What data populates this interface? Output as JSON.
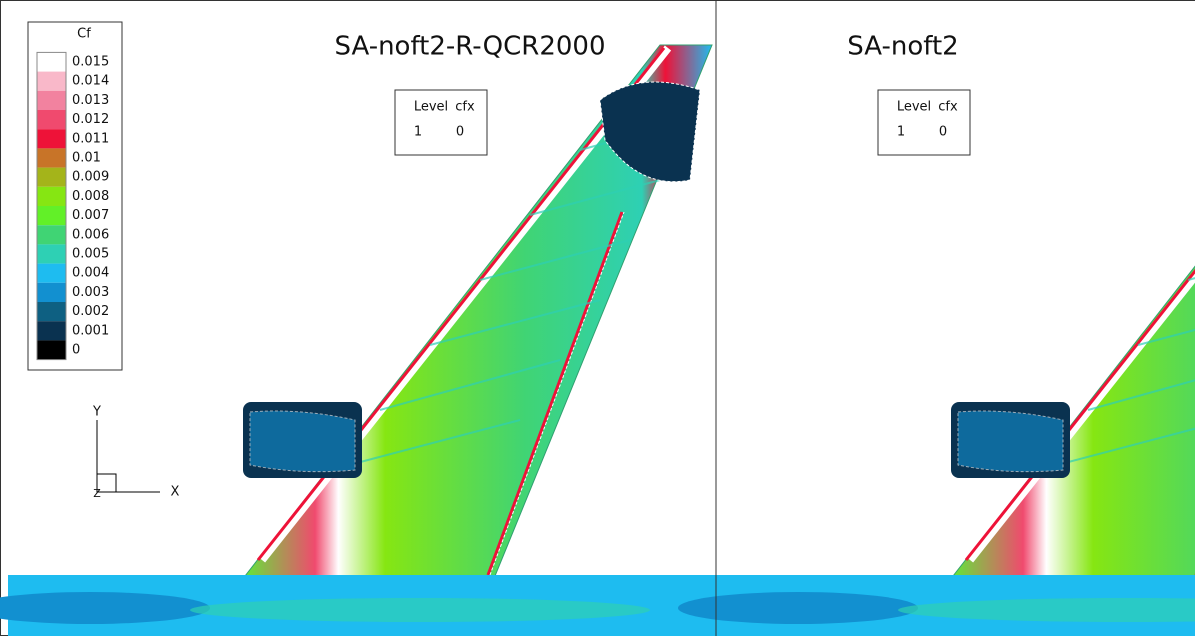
{
  "colorbar": {
    "title": "Cf",
    "levels": [
      {
        "label": "0.015",
        "color": "#ffffff"
      },
      {
        "label": "0.014",
        "color": "#f9b8c9"
      },
      {
        "label": "0.013",
        "color": "#f2829f"
      },
      {
        "label": "0.012",
        "color": "#f04a6e"
      },
      {
        "label": "0.011",
        "color": "#ee1238"
      },
      {
        "label": "0.01",
        "color": "#c87428"
      },
      {
        "label": "0.009",
        "color": "#a4b41a"
      },
      {
        "label": "0.008",
        "color": "#86e612"
      },
      {
        "label": "0.007",
        "color": "#62f028"
      },
      {
        "label": "0.006",
        "color": "#40d474"
      },
      {
        "label": "0.005",
        "color": "#2ed0b4"
      },
      {
        "label": "0.004",
        "color": "#1ebcf0"
      },
      {
        "label": "0.003",
        "color": "#1290d0"
      },
      {
        "label": "0.002",
        "color": "#0e6082"
      },
      {
        "label": "0.001",
        "color": "#0a3250"
      },
      {
        "label": "0",
        "color": "#000000"
      }
    ]
  },
  "axes": {
    "y": "Y",
    "x": "X",
    "z": "Z"
  },
  "panels": [
    {
      "title": "SA-noft2-R-QCR2000",
      "legend": {
        "header": [
          "Level",
          "cfx"
        ],
        "row": [
          "1",
          "0"
        ]
      }
    },
    {
      "title": "SA-noft2",
      "legend": {
        "header": [
          "Level",
          "cfx"
        ],
        "row": [
          "1",
          "0"
        ]
      }
    }
  ]
}
